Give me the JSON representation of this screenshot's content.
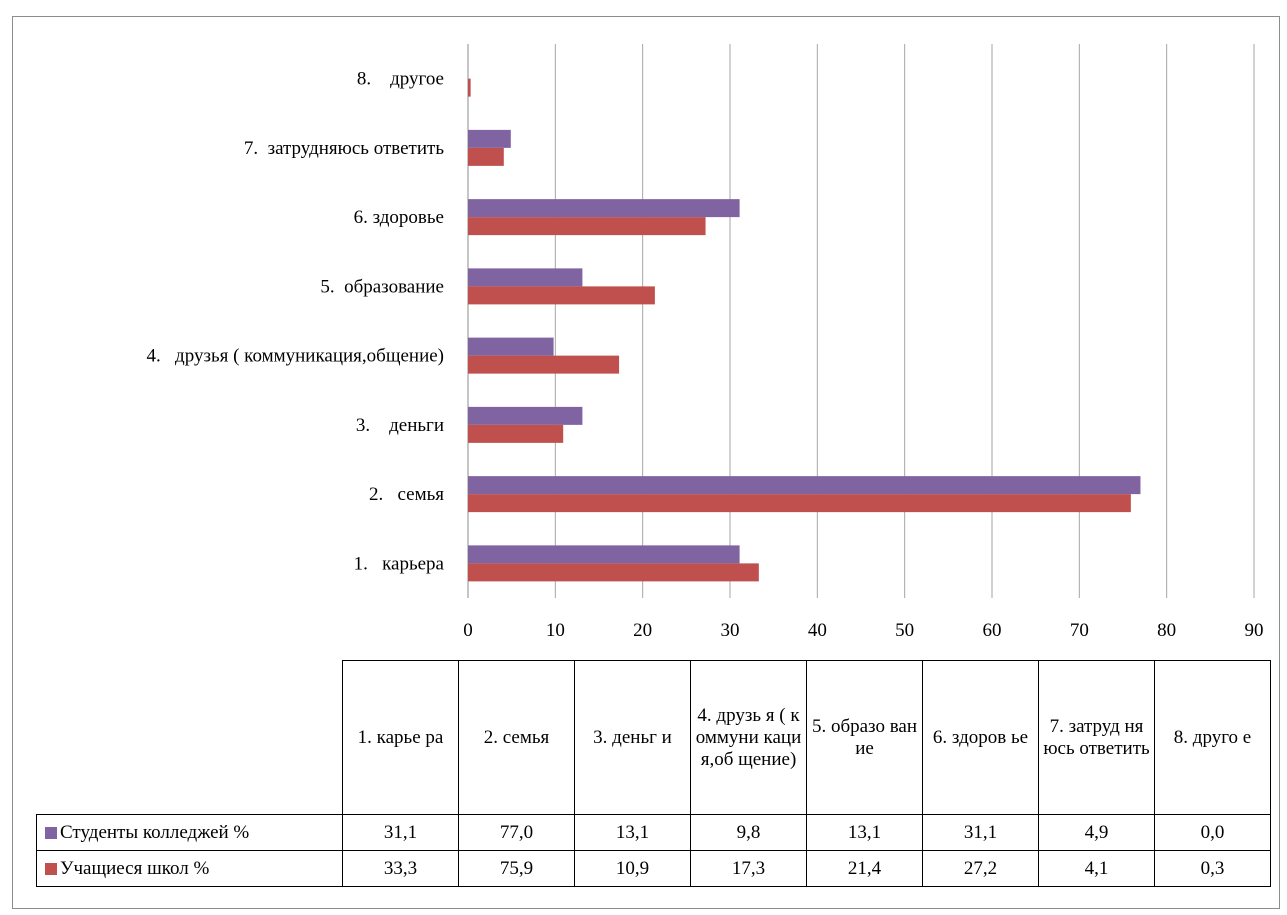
{
  "chart_data": {
    "type": "bar",
    "orientation": "horizontal",
    "title": "",
    "xlabel": "",
    "ylabel": "",
    "categories": [
      "1.   карьера",
      "2.   семья",
      "3.    деньги",
      "4.   друзья ( коммуникация,общение)",
      "5.  образование",
      "6. здоровье",
      "7.  затрудняюсь ответить",
      "8.    другое"
    ],
    "table_headers": [
      "1.   карье ра",
      "2.   семья",
      "3.   деньг и",
      "4.   друзь я ( коммуни кация,об щение)",
      "5.  образо вание",
      "6. здоров ье",
      "7.  затруд няюсь ответить",
      "8.      друго е"
    ],
    "series": [
      {
        "name": "Студенты колледжей %",
        "color": "#8064a2",
        "values": [
          31.1,
          77.0,
          13.1,
          9.8,
          13.1,
          31.1,
          4.9,
          0.0
        ],
        "labels": [
          "31,1",
          "77,0",
          "13,1",
          "9,8",
          "13,1",
          "31,1",
          "4,9",
          "0,0"
        ]
      },
      {
        "name": "Учащиеся школ %",
        "color": "#c0504d",
        "values": [
          33.3,
          75.9,
          10.9,
          17.3,
          21.4,
          27.2,
          4.1,
          0.3
        ],
        "labels": [
          "33,3",
          "75,9",
          "10,9",
          "17,3",
          "21,4",
          "27,2",
          "4,1",
          "0,3"
        ]
      }
    ],
    "xlim": [
      0,
      90
    ],
    "xticks": [
      0,
      10,
      20,
      30,
      40,
      50,
      60,
      70,
      80,
      90
    ],
    "grid": "vertical",
    "legend": "data table below chart",
    "gridline_color": "#a6a6a6"
  }
}
